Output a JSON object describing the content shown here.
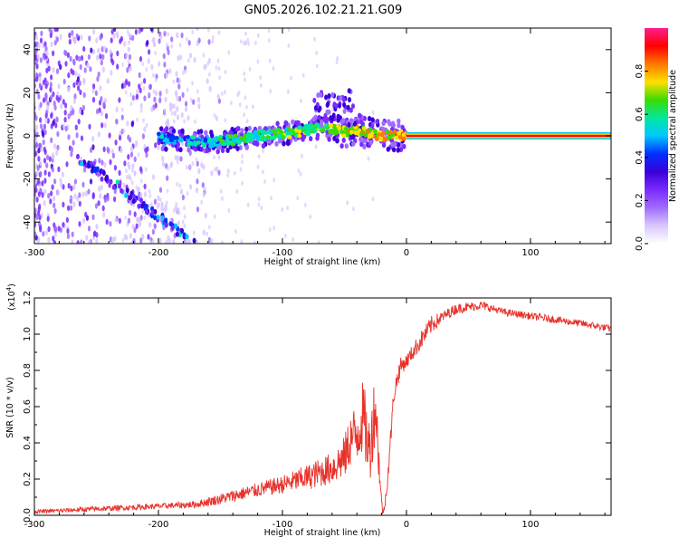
{
  "page_title": "GN05.2026.102.21.21.G09",
  "colors": {
    "snr_line": "#e8312a",
    "background": "#ffffff",
    "colormap": [
      "#ffffff",
      "#d9c8ff",
      "#a06cff",
      "#7a2bff",
      "#3a00d8",
      "#0030ff",
      "#00c8ff",
      "#00e8a0",
      "#3cdc00",
      "#ffe000",
      "#ff7800",
      "#ff0000",
      "#ff1e8c"
    ]
  },
  "chart_data": [
    {
      "id": "spectrogram",
      "type": "heatmap",
      "title": "GN05.2026.102.21.21.G09",
      "xlabel": "Height of straight line (km)",
      "ylabel": "Frequency (Hz)",
      "xlim": [
        -300,
        165
      ],
      "ylim": [
        -50,
        50
      ],
      "xticks": [
        -300,
        -200,
        -100,
        0,
        100
      ],
      "xtick_labels": [
        "-300",
        "-200",
        "-100",
        "0",
        "100"
      ],
      "yticks": [
        -40,
        -20,
        0,
        20,
        40
      ],
      "ytick_labels": [
        "-40",
        "-20",
        "0",
        "20",
        "40"
      ],
      "colorbar": {
        "label": "Normalized spectral amplitude",
        "range": [
          0,
          1
        ],
        "ticks": [
          0.0,
          0.2,
          0.4,
          0.6,
          0.8
        ],
        "tick_labels": [
          "0.0",
          "0.2",
          "0.4",
          "0.6",
          "0.8"
        ]
      },
      "ridge": {
        "x": [
          -200,
          -180,
          -160,
          -140,
          -120,
          -100,
          -85,
          -70,
          -60,
          -50,
          -40,
          -30,
          -20,
          -10,
          0
        ],
        "y": [
          -1,
          -2,
          -3,
          -2,
          0,
          1,
          2,
          4,
          3,
          2,
          3,
          1,
          0,
          0,
          0
        ]
      },
      "constant_line": {
        "x_start": 0,
        "x_end": 165,
        "frequency": 0,
        "amplitude": 1.0
      },
      "diagonal_branch": {
        "x": [
          -265,
          -170
        ],
        "y": [
          -10,
          -50
        ]
      }
    },
    {
      "id": "snr",
      "type": "line",
      "title": "",
      "xlabel": "Height of straight line (km)",
      "ylabel": "SNR (10 * v/v)",
      "y_multiplier": "(x10",
      "y_multiplier_exp": "4",
      "y_multiplier_close": ")",
      "xlim": [
        -300,
        165
      ],
      "ylim": [
        0,
        1.2
      ],
      "xticks": [
        -300,
        -200,
        -100,
        0,
        100
      ],
      "xtick_labels": [
        "-300",
        "-200",
        "-100",
        "0",
        "100"
      ],
      "yticks": [
        0.0,
        0.2,
        0.4,
        0.6,
        0.8,
        1.0,
        1.2
      ],
      "ytick_labels": [
        "0.0",
        "0.2",
        "0.4",
        "0.6",
        "0.8",
        "1.0",
        "1.2"
      ],
      "x": [
        -300,
        -250,
        -200,
        -170,
        -150,
        -120,
        -100,
        -80,
        -60,
        -50,
        -45,
        -40,
        -35,
        -30,
        -25,
        -20,
        -18,
        -15,
        -10,
        -5,
        0,
        10,
        20,
        30,
        40,
        50,
        60,
        70,
        80,
        100,
        120,
        140,
        165
      ],
      "y": [
        0.02,
        0.035,
        0.05,
        0.06,
        0.09,
        0.14,
        0.17,
        0.21,
        0.26,
        0.32,
        0.42,
        0.45,
        0.55,
        0.35,
        0.62,
        0.05,
        0.02,
        0.22,
        0.68,
        0.82,
        0.85,
        0.95,
        1.05,
        1.1,
        1.14,
        1.15,
        1.16,
        1.14,
        1.12,
        1.1,
        1.08,
        1.06,
        1.03
      ],
      "noise": [
        0.01,
        0.015,
        0.015,
        0.02,
        0.03,
        0.04,
        0.05,
        0.07,
        0.09,
        0.12,
        0.15,
        0.18,
        0.2,
        0.2,
        0.2,
        0.05,
        0.02,
        0.05,
        0.06,
        0.05,
        0.04,
        0.05,
        0.05,
        0.03,
        0.03,
        0.025,
        0.025,
        0.02,
        0.02,
        0.02,
        0.02,
        0.02,
        0.02
      ]
    }
  ]
}
